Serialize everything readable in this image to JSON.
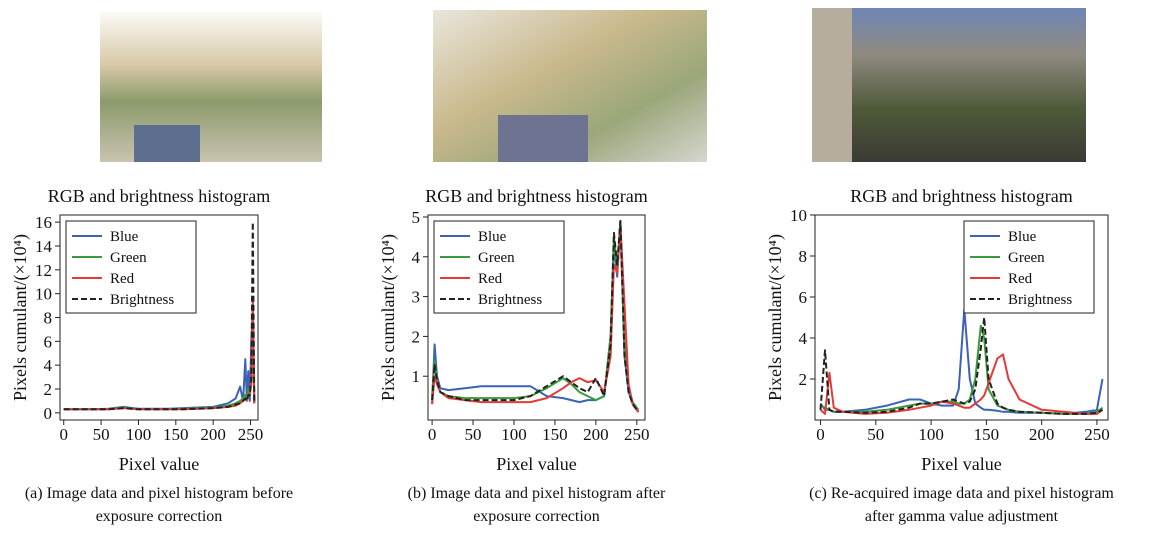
{
  "chart_data": [
    {
      "type": "line",
      "title": "RGB and brightness histogram",
      "x_label": "Pixel value",
      "y_label": "Pixels cumulant/(×10⁴)",
      "caption": [
        "(a) Image data and pixel histogram before",
        "exposure correction"
      ],
      "legend": "upper left",
      "xlim": [
        -5,
        260
      ],
      "ylim": [
        -0.6,
        16.6
      ],
      "xticks": [
        0,
        50,
        100,
        150,
        200,
        250
      ],
      "yticks": [
        0,
        2,
        4,
        6,
        8,
        10,
        12,
        14,
        16
      ],
      "x": [
        0,
        20,
        40,
        60,
        80,
        100,
        120,
        140,
        160,
        180,
        200,
        220,
        230,
        236,
        240,
        243,
        245,
        247,
        249,
        251,
        253,
        255
      ],
      "series": [
        {
          "name": "Blue",
          "color": "#3a62b8",
          "linestyle": "solid",
          "values": [
            0.3,
            0.3,
            0.3,
            0.35,
            0.5,
            0.35,
            0.35,
            0.35,
            0.4,
            0.45,
            0.5,
            0.8,
            1.2,
            2.2,
            1.0,
            4.5,
            1.2,
            3.5,
            1.0,
            6.0,
            8.5,
            0.8
          ]
        },
        {
          "name": "Green",
          "color": "#3a9a3a",
          "linestyle": "solid",
          "values": [
            0.3,
            0.3,
            0.3,
            0.3,
            0.45,
            0.3,
            0.3,
            0.3,
            0.35,
            0.4,
            0.45,
            0.6,
            0.8,
            1.0,
            1.2,
            1.5,
            1.2,
            2.0,
            1.5,
            3.0,
            7.0,
            0.8
          ]
        },
        {
          "name": "Red",
          "color": "#e43a3a",
          "linestyle": "solid",
          "values": [
            0.3,
            0.3,
            0.3,
            0.3,
            0.4,
            0.3,
            0.3,
            0.3,
            0.3,
            0.35,
            0.4,
            0.5,
            0.6,
            0.8,
            1.0,
            1.2,
            1.0,
            1.5,
            1.5,
            2.5,
            9.5,
            0.8
          ]
        },
        {
          "name": "Brightness",
          "color": "#222222",
          "linestyle": "dashed",
          "values": [
            0.3,
            0.3,
            0.3,
            0.3,
            0.4,
            0.3,
            0.3,
            0.3,
            0.3,
            0.35,
            0.4,
            0.5,
            0.7,
            0.8,
            1.0,
            1.2,
            1.0,
            1.5,
            1.5,
            3.0,
            16.0,
            0.8
          ]
        }
      ]
    },
    {
      "type": "line",
      "title": "RGB and brightness histogram",
      "x_label": "Pixel value",
      "y_label": "Pixels cumulant/(×10⁴)",
      "caption": [
        "(b) Image data and pixel histogram after",
        "exposure correction"
      ],
      "legend": "upper left",
      "xlim": [
        -5,
        260
      ],
      "ylim": [
        -0.1,
        5.05
      ],
      "xticks": [
        0,
        50,
        100,
        150,
        200,
        250
      ],
      "yticks": [
        1,
        2,
        3,
        4,
        5
      ],
      "x": [
        0,
        3,
        6,
        10,
        20,
        40,
        60,
        80,
        100,
        120,
        140,
        160,
        170,
        180,
        190,
        200,
        210,
        218,
        222,
        226,
        230,
        235,
        240,
        245,
        252
      ],
      "series": [
        {
          "name": "Blue",
          "color": "#3a62b8",
          "linestyle": "solid",
          "values": [
            0.3,
            1.8,
            1.0,
            0.7,
            0.65,
            0.7,
            0.75,
            0.75,
            0.75,
            0.75,
            0.5,
            0.45,
            0.4,
            0.35,
            0.4,
            0.4,
            0.5,
            2.0,
            4.3,
            3.5,
            4.9,
            1.5,
            0.6,
            0.3,
            0.1
          ]
        },
        {
          "name": "Green",
          "color": "#3a9a3a",
          "linestyle": "solid",
          "values": [
            0.5,
            1.4,
            0.9,
            0.6,
            0.5,
            0.45,
            0.45,
            0.45,
            0.45,
            0.5,
            0.7,
            0.95,
            0.8,
            0.6,
            0.5,
            0.4,
            0.5,
            2.0,
            4.5,
            3.7,
            4.9,
            1.8,
            0.7,
            0.35,
            0.15
          ]
        },
        {
          "name": "Red",
          "color": "#e43a3a",
          "linestyle": "solid",
          "values": [
            0.3,
            1.0,
            0.8,
            0.6,
            0.45,
            0.4,
            0.35,
            0.35,
            0.35,
            0.35,
            0.45,
            0.7,
            0.85,
            0.95,
            0.85,
            0.9,
            0.6,
            1.5,
            3.8,
            3.6,
            4.8,
            2.8,
            0.8,
            0.3,
            0.1
          ]
        },
        {
          "name": "Brightness",
          "color": "#222222",
          "linestyle": "dashed",
          "values": [
            0.4,
            1.3,
            0.9,
            0.6,
            0.5,
            0.4,
            0.4,
            0.4,
            0.4,
            0.5,
            0.75,
            1.0,
            0.85,
            0.7,
            0.6,
            0.95,
            0.5,
            1.8,
            4.6,
            3.8,
            4.9,
            1.5,
            0.6,
            0.3,
            0.1
          ]
        }
      ]
    },
    {
      "type": "line",
      "title": "RGB and brightness histogram",
      "x_label": "Pixel value",
      "y_label": "Pixels cumulant/(×10⁴)",
      "caption": [
        "(c) Re-acquired image data and pixel histogram",
        "after gamma value adjustment"
      ],
      "legend": "upper right",
      "xlim": [
        -5,
        260
      ],
      "ylim": [
        0,
        10
      ],
      "xticks": [
        0,
        50,
        100,
        150,
        200,
        250
      ],
      "yticks": [
        2,
        4,
        6,
        8,
        10
      ],
      "x": [
        0,
        4,
        8,
        12,
        20,
        40,
        60,
        80,
        90,
        100,
        110,
        120,
        125,
        130,
        135,
        140,
        145,
        148,
        152,
        160,
        165,
        170,
        180,
        200,
        220,
        240,
        250,
        255
      ],
      "series": [
        {
          "name": "Blue",
          "color": "#3a62b8",
          "linestyle": "solid",
          "values": [
            0.8,
            0.5,
            0.5,
            0.4,
            0.4,
            0.5,
            0.7,
            1.0,
            1.0,
            0.8,
            0.7,
            0.7,
            1.5,
            5.4,
            2.0,
            0.8,
            0.6,
            0.5,
            0.5,
            0.45,
            0.4,
            0.4,
            0.35,
            0.35,
            0.3,
            0.4,
            0.5,
            2.0
          ]
        },
        {
          "name": "Green",
          "color": "#3a9a3a",
          "linestyle": "solid",
          "values": [
            0.7,
            0.6,
            0.5,
            0.4,
            0.4,
            0.4,
            0.5,
            0.7,
            0.8,
            0.8,
            0.9,
            0.9,
            0.8,
            0.8,
            1.0,
            2.0,
            4.6,
            4.0,
            1.5,
            0.7,
            0.6,
            0.5,
            0.4,
            0.35,
            0.3,
            0.3,
            0.4,
            0.6
          ]
        },
        {
          "name": "Red",
          "color": "#e43a3a",
          "linestyle": "solid",
          "values": [
            0.5,
            0.3,
            2.3,
            0.6,
            0.4,
            0.3,
            0.35,
            0.5,
            0.6,
            0.7,
            0.9,
            0.8,
            0.7,
            0.6,
            0.6,
            0.8,
            1.0,
            1.2,
            1.8,
            3.0,
            3.2,
            2.0,
            1.0,
            0.5,
            0.4,
            0.3,
            0.3,
            0.5
          ]
        },
        {
          "name": "Brightness",
          "color": "#222222",
          "linestyle": "dashed",
          "values": [
            0.5,
            3.4,
            0.5,
            0.4,
            0.4,
            0.35,
            0.4,
            0.6,
            0.8,
            0.8,
            0.9,
            1.0,
            0.9,
            0.8,
            0.9,
            1.5,
            3.5,
            5.0,
            2.0,
            0.8,
            0.6,
            0.5,
            0.4,
            0.35,
            0.3,
            0.3,
            0.35,
            0.5
          ]
        }
      ]
    }
  ]
}
